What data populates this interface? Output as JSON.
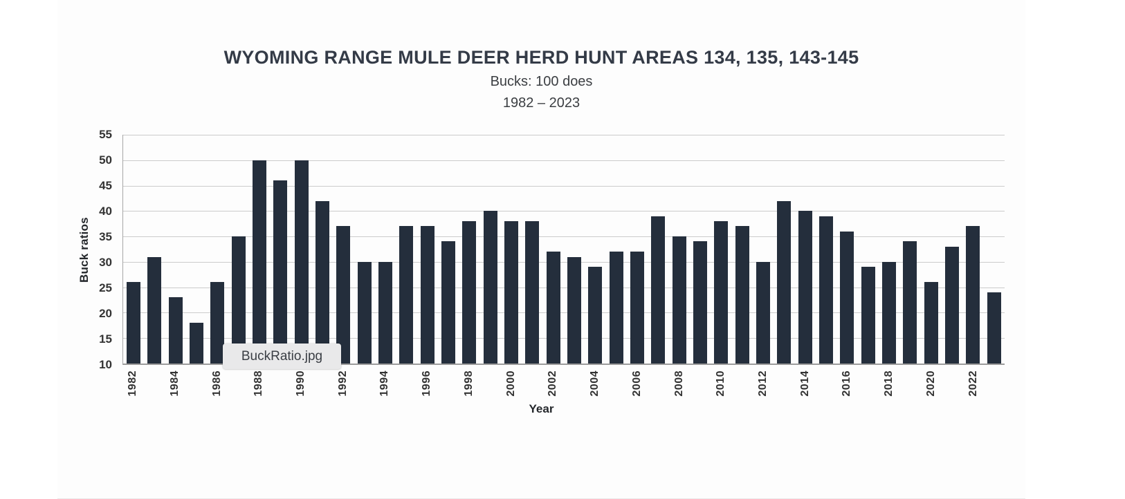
{
  "overlay": {
    "filename_label": "BuckRatio.jpg"
  },
  "chart_data": {
    "type": "bar",
    "title": "WYOMING RANGE MULE DEER HERD HUNT AREAS 134, 135, 143-145",
    "subtitle": "Bucks: 100 does",
    "period": "1982 – 2023",
    "xlabel": "Year",
    "ylabel": "Buck ratios",
    "ylim": [
      10,
      55
    ],
    "y_ticks": [
      10,
      15,
      20,
      25,
      30,
      35,
      40,
      45,
      50,
      55
    ],
    "x_tick_interval": 2,
    "grid": "horizontal",
    "legend": "none",
    "bar_color": "#242e3c",
    "grid_color": "#cbcbcb",
    "axis_color": "#9b9b9b",
    "categories": [
      1982,
      1983,
      1984,
      1985,
      1986,
      1987,
      1988,
      1989,
      1990,
      1991,
      1992,
      1993,
      1994,
      1995,
      1996,
      1997,
      1998,
      1999,
      2000,
      2001,
      2002,
      2003,
      2004,
      2005,
      2006,
      2007,
      2008,
      2009,
      2010,
      2011,
      2012,
      2013,
      2014,
      2015,
      2016,
      2017,
      2018,
      2019,
      2020,
      2021,
      2022,
      2023
    ],
    "values": [
      26,
      31,
      23,
      18,
      26,
      35,
      50,
      46,
      50,
      42,
      37,
      30,
      30,
      37,
      37,
      34,
      38,
      40,
      38,
      38,
      32,
      31,
      29,
      32,
      32,
      39,
      35,
      34,
      38,
      37,
      30,
      42,
      40,
      39,
      36,
      29,
      30,
      34,
      26,
      33,
      37,
      24
    ]
  }
}
